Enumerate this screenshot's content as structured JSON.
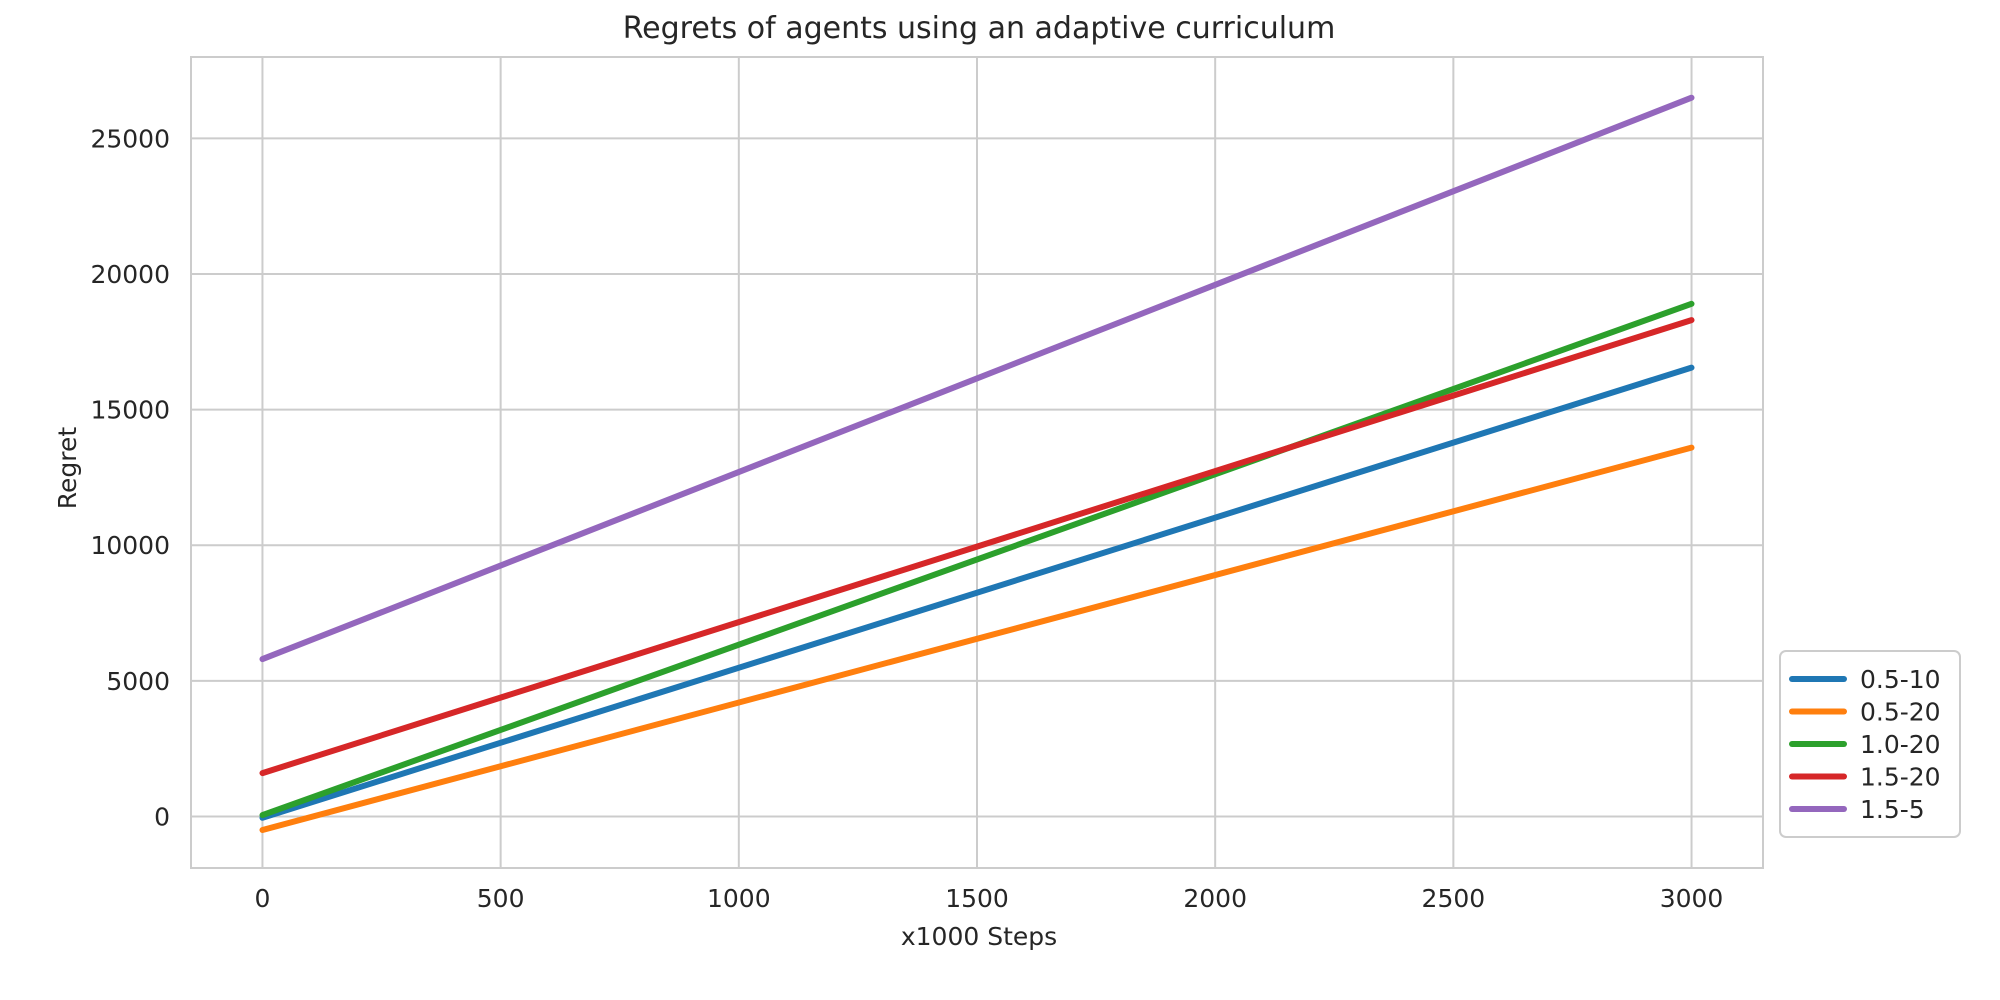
{
  "chart_data": {
    "type": "line",
    "title": "Regrets of agents using an adaptive curriculum",
    "xlabel": "x1000 Steps",
    "ylabel": "Regret",
    "xlim": [
      -150,
      3150
    ],
    "ylim": [
      -1900,
      28000
    ],
    "xticks": [
      0,
      500,
      1000,
      1500,
      2000,
      2500,
      3000
    ],
    "yticks": [
      0,
      5000,
      10000,
      15000,
      20000,
      25000
    ],
    "grid": true,
    "legend_position": "lower-right outside",
    "series": [
      {
        "name": "0.5-10",
        "color": "#1f77b4",
        "x": [
          0,
          3000
        ],
        "y": [
          -50,
          16550
        ]
      },
      {
        "name": "0.5-20",
        "color": "#ff7f0e",
        "x": [
          0,
          3000
        ],
        "y": [
          -500,
          13600
        ]
      },
      {
        "name": "1.0-20",
        "color": "#2ca02c",
        "x": [
          0,
          3000
        ],
        "y": [
          50,
          18900
        ]
      },
      {
        "name": "1.5-20",
        "color": "#d62728",
        "x": [
          0,
          3000
        ],
        "y": [
          1600,
          18300
        ]
      },
      {
        "name": "1.5-5",
        "color": "#9467bd",
        "x": [
          0,
          3000
        ],
        "y": [
          5800,
          26500
        ]
      }
    ]
  }
}
